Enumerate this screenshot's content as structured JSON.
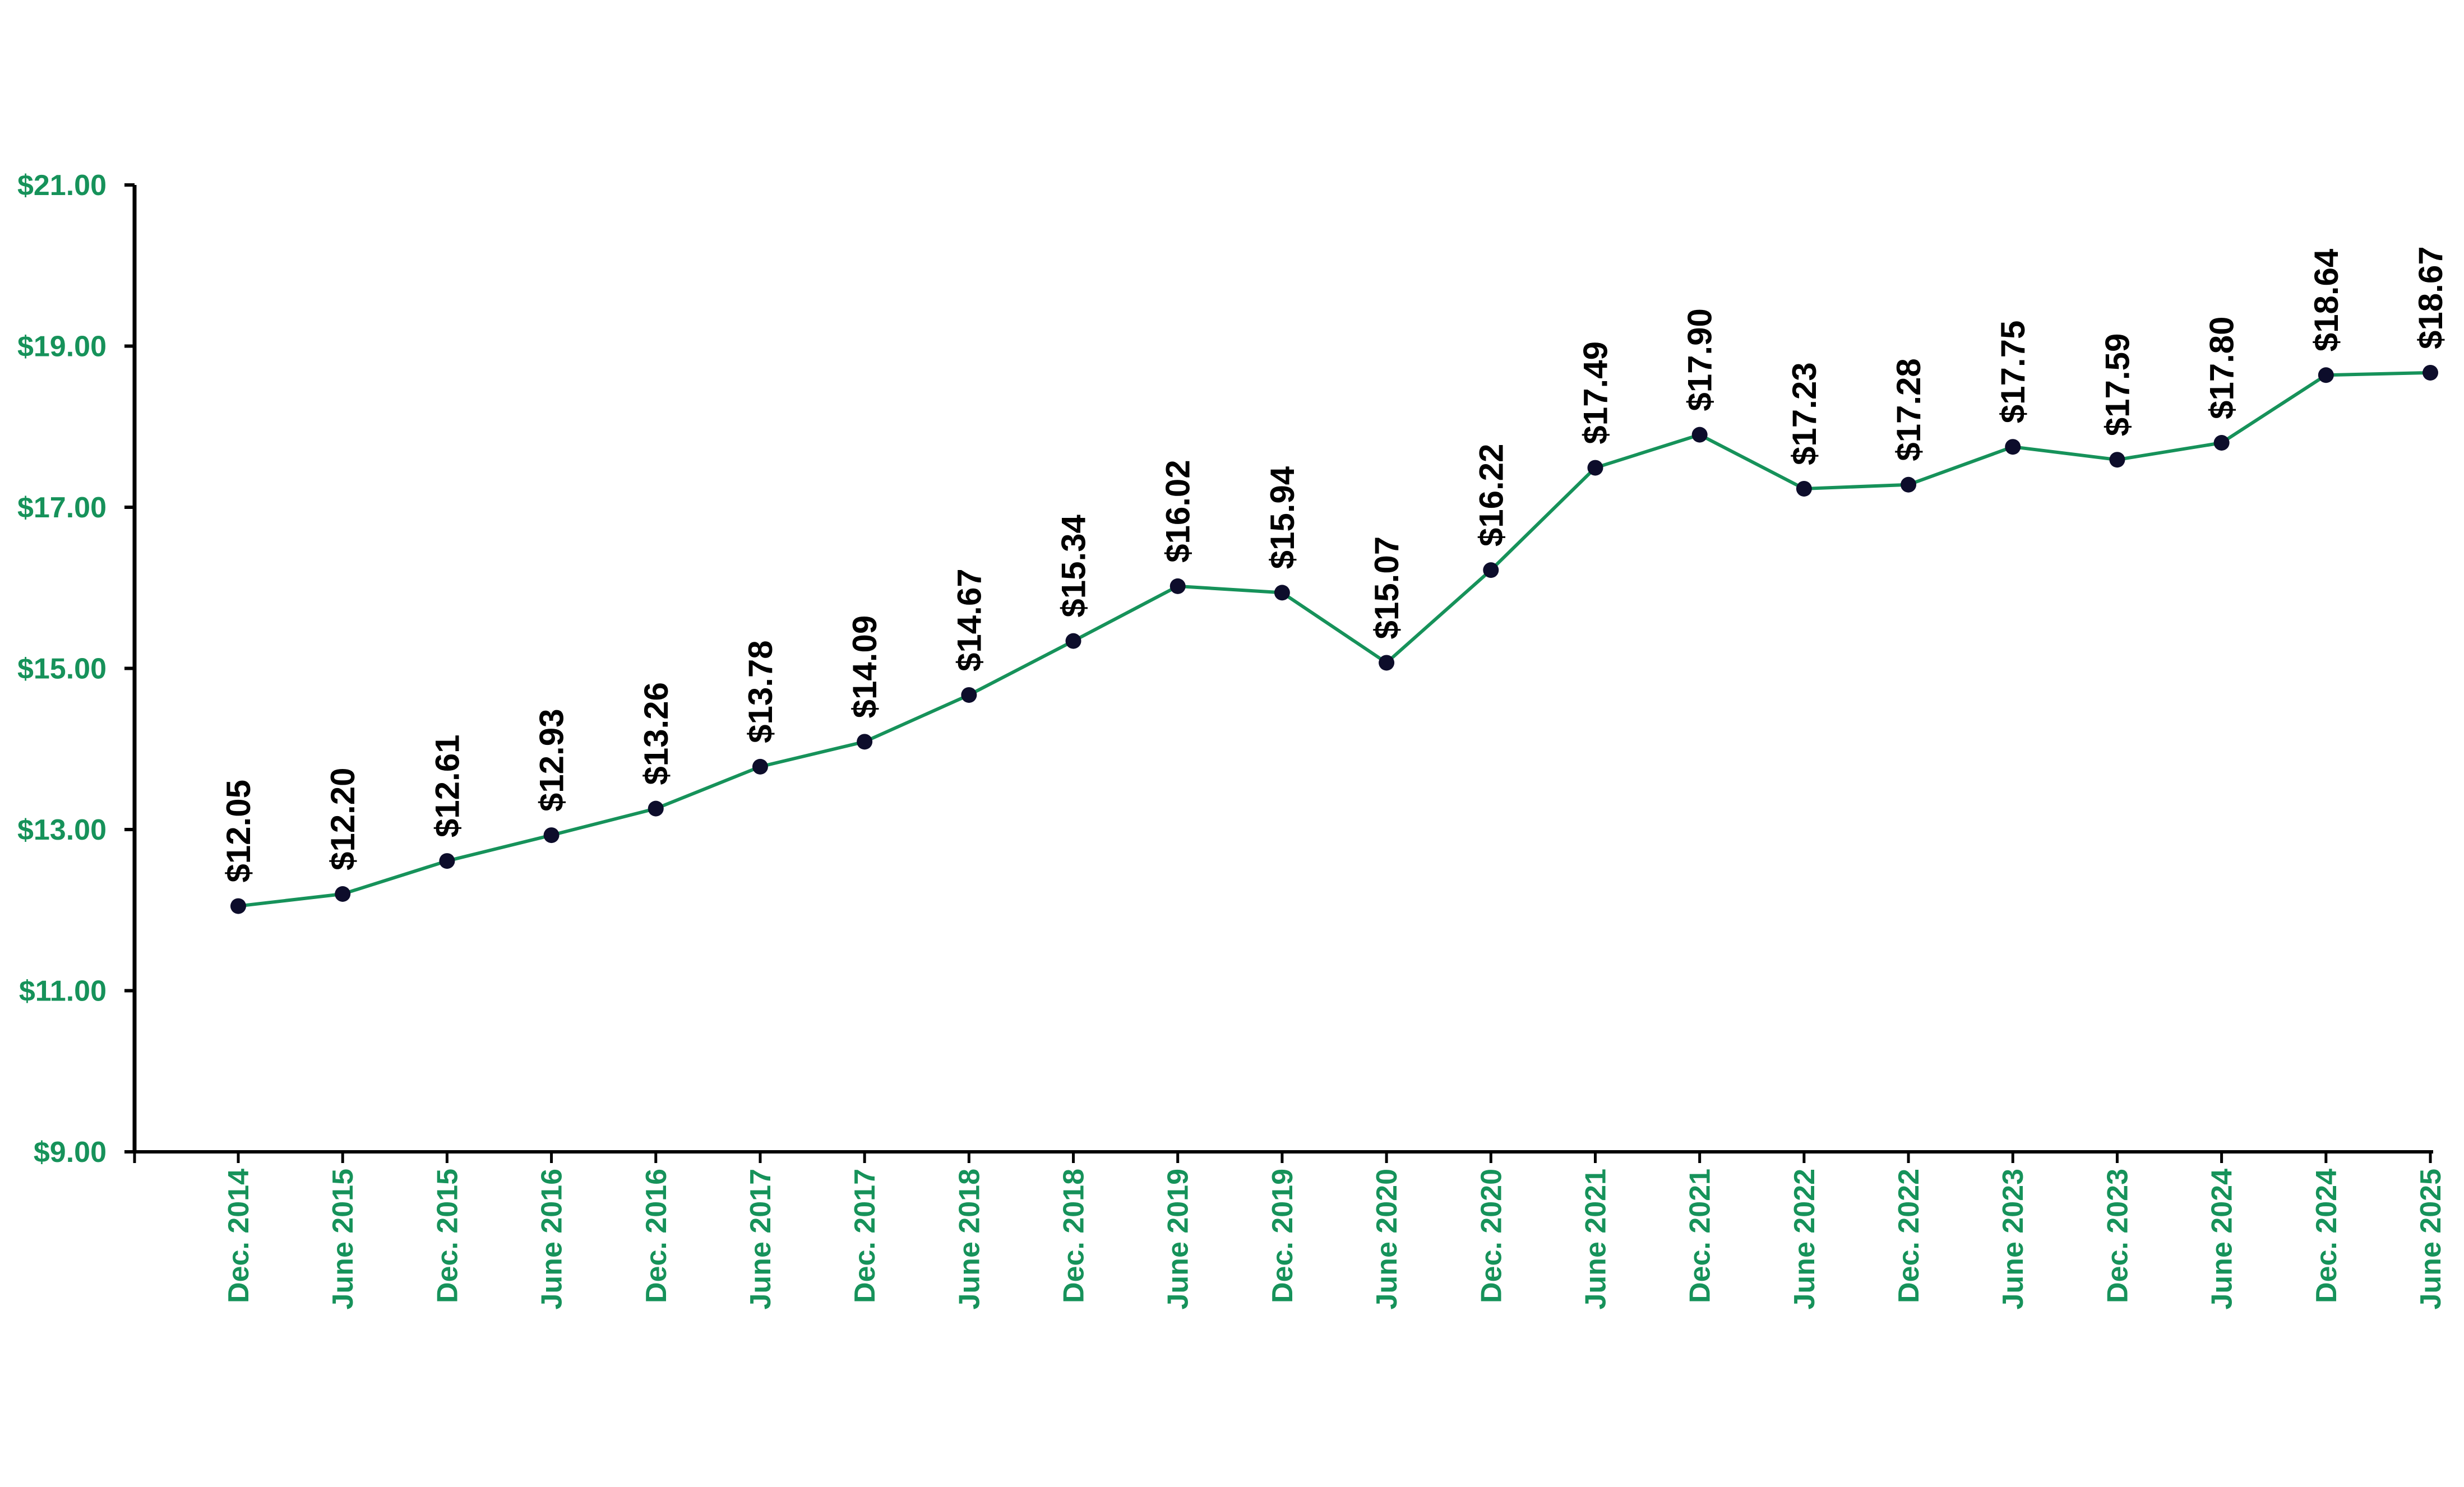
{
  "chart_data": {
    "type": "line",
    "categories": [
      "Dec. 2014",
      "June 2015",
      "Dec. 2015",
      "June 2016",
      "Dec. 2016",
      "June 2017",
      "Dec. 2017",
      "June 2018",
      "Dec. 2018",
      "June 2019",
      "Dec. 2019",
      "June 2020",
      "Dec. 2020",
      "June 2021",
      "Dec. 2021",
      "June 2022",
      "Dec. 2022",
      "June 2023",
      "Dec. 2023",
      "June 2024",
      "Dec. 2024",
      "June 2025"
    ],
    "series": [
      {
        "values": [
          12.05,
          12.2,
          12.61,
          12.93,
          13.26,
          13.78,
          14.09,
          14.67,
          15.34,
          16.02,
          15.94,
          15.07,
          16.22,
          17.49,
          17.9,
          17.23,
          17.28,
          17.75,
          17.59,
          17.8,
          18.64,
          18.67
        ],
        "data_labels": [
          "$12.05",
          "$12.20",
          "$12.61",
          "$12.93",
          "$13.26",
          "$13.78",
          "$14.09",
          "$14.67",
          "$15.34",
          "$16.02",
          "$15.94",
          "$15.07",
          "$16.22",
          "$17.49",
          "$17.90",
          "$17.23",
          "$17.28",
          "$17.75",
          "$17.59",
          "$17.80",
          "$18.64",
          "$18.67"
        ]
      }
    ],
    "y_ticks": [
      9,
      11,
      13,
      15,
      17,
      19,
      21
    ],
    "y_tick_labels": [
      "$9.00",
      "$11.00",
      "$13.00",
      "$15.00",
      "$17.00",
      "$19.00",
      "$21.00"
    ],
    "ylim": [
      9,
      21
    ],
    "title": "",
    "xlabel": "",
    "ylabel": "",
    "grid": false,
    "legend": "none",
    "colors": {
      "line": "#16925a",
      "marker": "#0d0d2b",
      "tick_label": "#16925a",
      "data_label": "#000000",
      "axis": "#000000"
    }
  }
}
